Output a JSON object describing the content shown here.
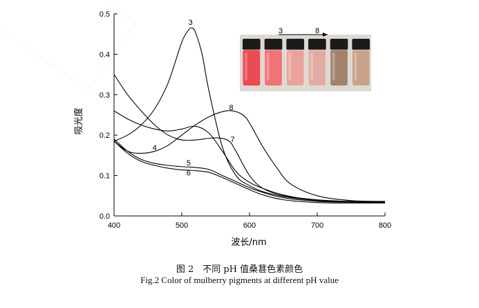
{
  "chart_data": {
    "type": "line",
    "xlabel": "波长/nm",
    "ylabel": "吸光度",
    "xlim": [
      400,
      800
    ],
    "ylim": [
      0.0,
      0.5
    ],
    "xticks": [
      "400",
      "500",
      "600",
      "700",
      "800"
    ],
    "yticks": [
      "0.0",
      "0.1",
      "0.2",
      "0.3",
      "0.4",
      "0.5"
    ],
    "grid": false,
    "series": [
      {
        "name": "3",
        "x": [
          400,
          420,
          440,
          460,
          480,
          500,
          510,
          515,
          520,
          530,
          540,
          560,
          580,
          600,
          620,
          650,
          700,
          750,
          800
        ],
        "y": [
          0.185,
          0.2,
          0.225,
          0.265,
          0.33,
          0.43,
          0.46,
          0.465,
          0.455,
          0.4,
          0.31,
          0.17,
          0.1,
          0.075,
          0.06,
          0.048,
          0.038,
          0.035,
          0.035
        ]
      },
      {
        "name": "4",
        "x": [
          400,
          420,
          440,
          460,
          480,
          500,
          520,
          540,
          560,
          580,
          600,
          620,
          650,
          700,
          750,
          800
        ],
        "y": [
          0.26,
          0.24,
          0.225,
          0.215,
          0.21,
          0.215,
          0.222,
          0.205,
          0.16,
          0.11,
          0.083,
          0.068,
          0.052,
          0.038,
          0.035,
          0.034
        ]
      },
      {
        "name": "5",
        "x": [
          400,
          420,
          440,
          460,
          480,
          500,
          520,
          540,
          560,
          580,
          600,
          620,
          650,
          700,
          750,
          800
        ],
        "y": [
          0.19,
          0.16,
          0.14,
          0.13,
          0.125,
          0.122,
          0.12,
          0.115,
          0.1,
          0.085,
          0.07,
          0.058,
          0.045,
          0.036,
          0.034,
          0.033
        ]
      },
      {
        "name": "6",
        "x": [
          400,
          420,
          440,
          460,
          480,
          500,
          520,
          540,
          560,
          580,
          600,
          620,
          650,
          700,
          750,
          800
        ],
        "y": [
          0.185,
          0.155,
          0.135,
          0.125,
          0.118,
          0.114,
          0.112,
          0.108,
          0.095,
          0.08,
          0.065,
          0.052,
          0.04,
          0.033,
          0.032,
          0.032
        ]
      },
      {
        "name": "7",
        "x": [
          400,
          420,
          440,
          460,
          480,
          500,
          520,
          540,
          555,
          570,
          580,
          600,
          620,
          650,
          700,
          750,
          800
        ],
        "y": [
          0.35,
          0.3,
          0.26,
          0.225,
          0.2,
          0.188,
          0.188,
          0.192,
          0.193,
          0.185,
          0.16,
          0.1,
          0.068,
          0.05,
          0.04,
          0.036,
          0.035
        ]
      },
      {
        "name": "8",
        "x": [
          400,
          420,
          440,
          460,
          480,
          500,
          520,
          540,
          560,
          575,
          590,
          600,
          620,
          640,
          660,
          700,
          750,
          800
        ],
        "y": [
          0.185,
          0.16,
          0.155,
          0.16,
          0.175,
          0.2,
          0.225,
          0.245,
          0.258,
          0.26,
          0.25,
          0.23,
          0.17,
          0.12,
          0.08,
          0.05,
          0.038,
          0.036
        ]
      }
    ],
    "inset": {
      "label_start": "3",
      "label_end": "8",
      "vials": [
        {
          "liquid": "#ea4a52",
          "cap": "#1b1b1b"
        },
        {
          "liquid": "#f07378",
          "cap": "#1b1b1b"
        },
        {
          "liquid": "#e9a39a",
          "cap": "#1b1b1b"
        },
        {
          "liquid": "#e0aca1",
          "cap": "#1b1b1b"
        },
        {
          "liquid": "#a0826d",
          "cap": "#1b1b1b"
        },
        {
          "liquid": "#c8a38c",
          "cap": "#1b1b1b"
        }
      ],
      "background": "#ded8d2"
    }
  },
  "caption": {
    "cn": "图 2　不同 pH 值桑葚色素颜色",
    "en": "Fig.2 Color of mulberry pigments at different pH value"
  }
}
